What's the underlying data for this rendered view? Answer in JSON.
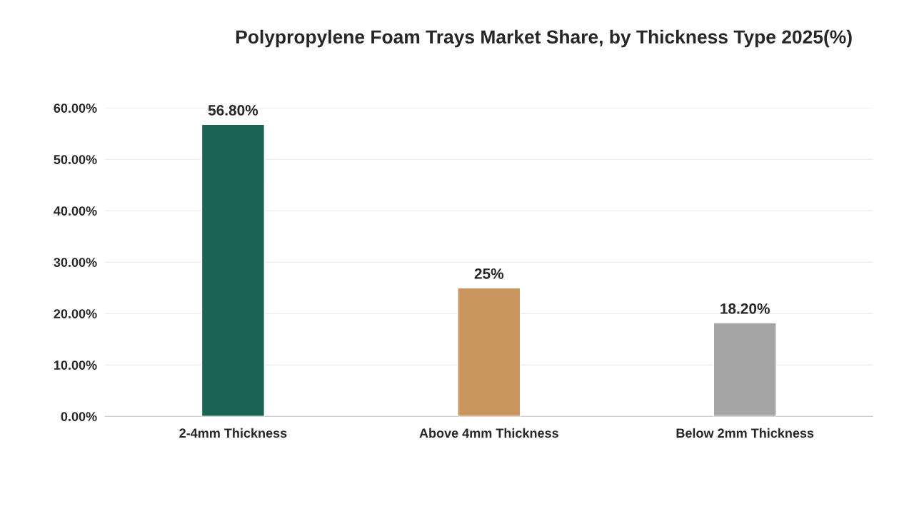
{
  "chart_data": {
    "type": "bar",
    "title": "Polypropylene Foam Trays Market Share, by Thickness Type 2025(%)",
    "categories": [
      "2-4mm Thickness",
      "Above 4mm Thickness",
      "Below 2mm Thickness"
    ],
    "values": [
      56.8,
      25,
      18.2
    ],
    "colors": [
      "#1a6355",
      "#c99660",
      "#a6a6a6"
    ],
    "value_labels": [
      "56.80%",
      "25%",
      "18.20%"
    ],
    "ylim": [
      0,
      60
    ],
    "yticks": [
      {
        "value": 0,
        "label": "0.00%"
      },
      {
        "value": 10,
        "label": "10.00%"
      },
      {
        "value": 20,
        "label": "20.00%"
      },
      {
        "value": 30,
        "label": "30.00%"
      },
      {
        "value": 40,
        "label": "40.00%"
      },
      {
        "value": 50,
        "label": "50.00%"
      },
      {
        "value": 60,
        "label": "60.00%"
      }
    ],
    "grid": "y"
  }
}
